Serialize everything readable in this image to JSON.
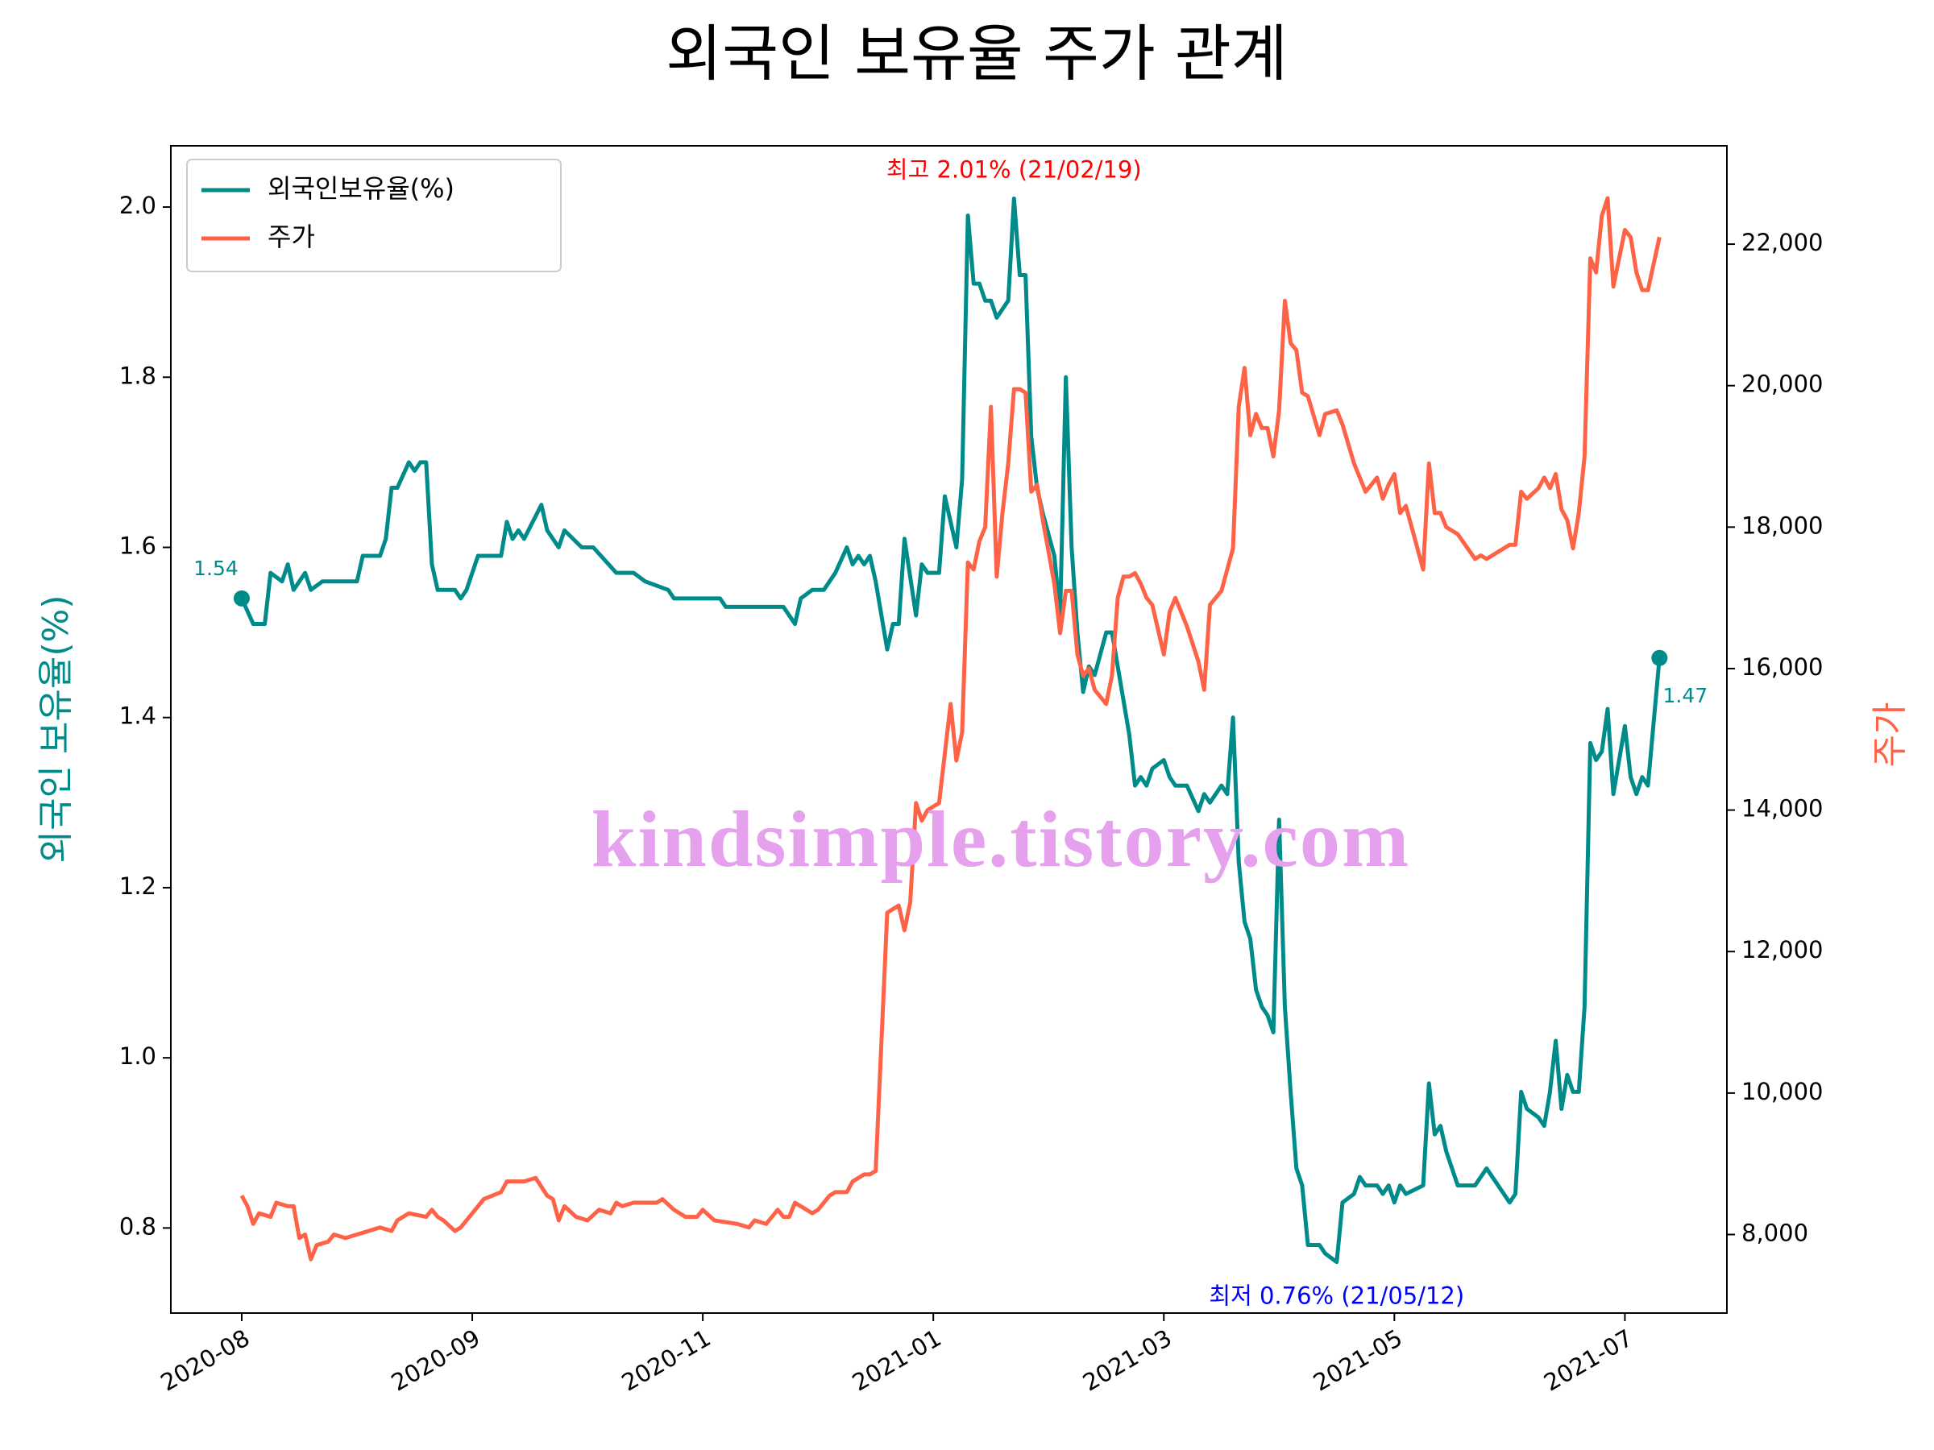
{
  "chart_data": {
    "type": "line",
    "title": "외국인 보유율 주가 관계",
    "y_label": "외국인 보유율(%)",
    "y2_label": "주가",
    "legend": "upper left",
    "xlim": [
      -12.3,
      257.7
    ],
    "xticks": [
      {
        "value": 0,
        "label": "2020-08"
      },
      {
        "value": 40,
        "label": "2020-09"
      },
      {
        "value": 80,
        "label": "2020-11"
      },
      {
        "value": 120,
        "label": "2021-01"
      },
      {
        "value": 160,
        "label": "2021-03"
      },
      {
        "value": 200,
        "label": "2021-05"
      },
      {
        "value": 240,
        "label": "2021-07"
      }
    ],
    "ylim": [
      0.7,
      2.072
    ],
    "yticks": [
      0.8,
      {
        "value": 1,
        "label": "1.0"
      },
      1.2,
      1.4,
      1.6,
      1.8,
      {
        "value": 2,
        "label": "2.0"
      }
    ],
    "y2lim": [
      6890,
      23390
    ],
    "y2ticks": [
      {
        "value": 8000,
        "label": "8,000"
      },
      {
        "value": 10000,
        "label": "10,000"
      },
      {
        "value": 12000,
        "label": "12,000"
      },
      {
        "value": 14000,
        "label": "14,000"
      },
      {
        "value": 16000,
        "label": "16,000"
      },
      {
        "value": 18000,
        "label": "18,000"
      },
      {
        "value": 20000,
        "label": "20,000"
      },
      {
        "value": 22000,
        "label": "22,000"
      }
    ],
    "series": [
      {
        "name": "외국인보유율(%)",
        "color": "#008b8b",
        "axis": "y",
        "x": [
          0,
          2,
          4,
          5,
          7,
          8,
          9,
          11,
          12,
          14,
          20,
          21,
          24,
          25,
          26,
          27,
          29,
          30,
          31,
          32,
          33,
          34,
          37,
          38,
          39,
          41,
          45,
          46,
          47,
          48,
          49,
          52,
          53,
          55,
          56,
          59,
          61,
          65,
          68,
          70,
          74,
          75,
          83,
          84,
          94,
          96,
          97,
          99,
          101,
          103,
          105,
          106,
          107,
          108,
          109,
          110,
          112,
          113,
          114,
          115,
          117,
          118,
          119,
          121,
          122,
          124,
          125,
          126,
          127,
          128,
          129,
          130,
          131,
          132,
          133,
          134,
          135,
          136,
          137,
          138,
          139,
          141,
          142,
          143,
          144,
          145,
          146,
          147,
          148,
          150,
          151,
          152,
          153,
          154,
          155,
          156,
          157,
          158,
          160,
          161,
          162,
          164,
          166,
          167,
          168,
          170,
          171,
          172,
          173,
          174,
          175,
          176,
          177,
          178,
          179,
          180,
          181,
          182,
          183,
          184,
          185,
          187,
          188,
          190,
          191,
          193,
          194,
          195,
          197,
          198,
          199,
          200,
          201,
          202,
          205,
          206,
          207,
          208,
          209,
          211,
          214,
          215,
          216,
          220,
          221,
          222,
          223,
          225,
          226,
          227,
          228,
          229,
          230,
          231,
          232,
          233,
          234,
          235,
          236,
          237,
          238,
          240,
          241,
          242,
          243,
          244,
          246
        ],
        "values": [
          1.54,
          1.51,
          1.51,
          1.57,
          1.56,
          1.58,
          1.55,
          1.57,
          1.55,
          1.56,
          1.56,
          1.59,
          1.59,
          1.61,
          1.67,
          1.67,
          1.7,
          1.69,
          1.7,
          1.7,
          1.58,
          1.55,
          1.55,
          1.54,
          1.55,
          1.59,
          1.59,
          1.63,
          1.61,
          1.62,
          1.61,
          1.65,
          1.62,
          1.6,
          1.62,
          1.6,
          1.6,
          1.57,
          1.57,
          1.56,
          1.55,
          1.54,
          1.54,
          1.53,
          1.53,
          1.51,
          1.54,
          1.55,
          1.55,
          1.57,
          1.6,
          1.58,
          1.59,
          1.58,
          1.59,
          1.56,
          1.48,
          1.51,
          1.51,
          1.61,
          1.52,
          1.58,
          1.57,
          1.57,
          1.66,
          1.6,
          1.68,
          1.99,
          1.91,
          1.91,
          1.89,
          1.89,
          1.87,
          1.88,
          1.89,
          2.01,
          1.92,
          1.92,
          1.73,
          1.67,
          1.64,
          1.59,
          1.52,
          1.8,
          1.6,
          1.5,
          1.43,
          1.46,
          1.45,
          1.5,
          1.5,
          1.46,
          1.42,
          1.38,
          1.32,
          1.33,
          1.32,
          1.34,
          1.35,
          1.33,
          1.32,
          1.32,
          1.29,
          1.31,
          1.3,
          1.32,
          1.31,
          1.4,
          1.23,
          1.16,
          1.14,
          1.08,
          1.06,
          1.05,
          1.03,
          1.28,
          1.06,
          0.96,
          0.87,
          0.85,
          0.78,
          0.78,
          0.77,
          0.76,
          0.83,
          0.84,
          0.86,
          0.85,
          0.85,
          0.84,
          0.85,
          0.83,
          0.85,
          0.84,
          0.85,
          0.97,
          0.91,
          0.92,
          0.89,
          0.85,
          0.85,
          0.86,
          0.87,
          0.83,
          0.84,
          0.96,
          0.94,
          0.93,
          0.92,
          0.96,
          1.02,
          0.94,
          0.98,
          0.96,
          0.96,
          1.06,
          1.37,
          1.35,
          1.36,
          1.41,
          1.31,
          1.39,
          1.33,
          1.31,
          1.33,
          1.32,
          1.47
        ]
      },
      {
        "name": "주가",
        "color": "#ff6347",
        "axis": "y2",
        "x": [
          0,
          1,
          2,
          3,
          5,
          6,
          8,
          9,
          10,
          11,
          12,
          13,
          15,
          16,
          18,
          20,
          22,
          24,
          26,
          27,
          29,
          32,
          33,
          34,
          35,
          37,
          38,
          40,
          42,
          45,
          46,
          49,
          51,
          53,
          54,
          55,
          56,
          58,
          60,
          62,
          64,
          65,
          66,
          68,
          72,
          73,
          75,
          77,
          79,
          80,
          82,
          86,
          88,
          89,
          91,
          93,
          94,
          95,
          96,
          99,
          100,
          102,
          103,
          105,
          106,
          107,
          108,
          109,
          110,
          112,
          113,
          114,
          115,
          116,
          117,
          118,
          119,
          121,
          122,
          123,
          124,
          125,
          126,
          127,
          128,
          129,
          130,
          131,
          132,
          133,
          134,
          135,
          136,
          137,
          138,
          139,
          141,
          142,
          143,
          144,
          145,
          146,
          147,
          148,
          150,
          151,
          152,
          153,
          154,
          155,
          156,
          157,
          158,
          160,
          161,
          162,
          164,
          166,
          167,
          168,
          170,
          171,
          172,
          173,
          174,
          175,
          176,
          177,
          178,
          179,
          180,
          181,
          182,
          183,
          184,
          185,
          187,
          188,
          190,
          191,
          193,
          194,
          195,
          197,
          198,
          199,
          200,
          201,
          202,
          205,
          206,
          207,
          208,
          209,
          211,
          214,
          215,
          216,
          220,
          221,
          222,
          223,
          225,
          226,
          227,
          228,
          229,
          230,
          231,
          232,
          233,
          234,
          235,
          236,
          237,
          238,
          240,
          241,
          242,
          243,
          244,
          246
        ],
        "values": [
          8550,
          8400,
          8150,
          8300,
          8250,
          8450,
          8400,
          8400,
          7950,
          8000,
          7650,
          7850,
          7900,
          8000,
          7950,
          8000,
          8050,
          8100,
          8050,
          8200,
          8300,
          8250,
          8350,
          8250,
          8200,
          8050,
          8100,
          8300,
          8500,
          8600,
          8750,
          8750,
          8800,
          8550,
          8500,
          8200,
          8400,
          8250,
          8200,
          8350,
          8300,
          8450,
          8400,
          8450,
          8450,
          8500,
          8350,
          8250,
          8250,
          8350,
          8200,
          8150,
          8100,
          8200,
          8150,
          8350,
          8250,
          8250,
          8450,
          8300,
          8350,
          8550,
          8600,
          8600,
          8750,
          8800,
          8850,
          8850,
          8900,
          12550,
          12600,
          12650,
          12300,
          12700,
          14100,
          13850,
          14000,
          14100,
          14800,
          15500,
          14700,
          15100,
          17500,
          17400,
          17800,
          18000,
          19700,
          17300,
          18200,
          18900,
          19950,
          19950,
          19900,
          18500,
          18600,
          18100,
          17200,
          16500,
          17100,
          17100,
          16200,
          15900,
          16000,
          15700,
          15500,
          15900,
          17000,
          17300,
          17300,
          17350,
          17200,
          17000,
          16900,
          16200,
          16800,
          17000,
          16600,
          16100,
          15700,
          16900,
          17100,
          17400,
          17700,
          19700,
          20250,
          19300,
          19600,
          19400,
          19400,
          19000,
          19650,
          21200,
          20600,
          20500,
          19900,
          19850,
          19300,
          19600,
          19650,
          19450,
          18900,
          18700,
          18500,
          18700,
          18400,
          18600,
          18750,
          18200,
          18300,
          17400,
          18900,
          18200,
          18200,
          18000,
          17900,
          17550,
          17600,
          17550,
          17750,
          17750,
          18500,
          18400,
          18550,
          18700,
          18550,
          18750,
          18250,
          18100,
          17700,
          18200,
          19000,
          21800,
          21600,
          22400,
          22650,
          21400,
          22200,
          22100,
          21600,
          21350,
          21350,
          22100
        ]
      }
    ],
    "annotations": {
      "max_label": "최고 2.01% (21/02/19)",
      "min_label": "최저 0.76% (21/05/12)",
      "start_label": "1.54",
      "end_label": "1.47",
      "watermark": "kindsimple.tistory.com"
    }
  }
}
